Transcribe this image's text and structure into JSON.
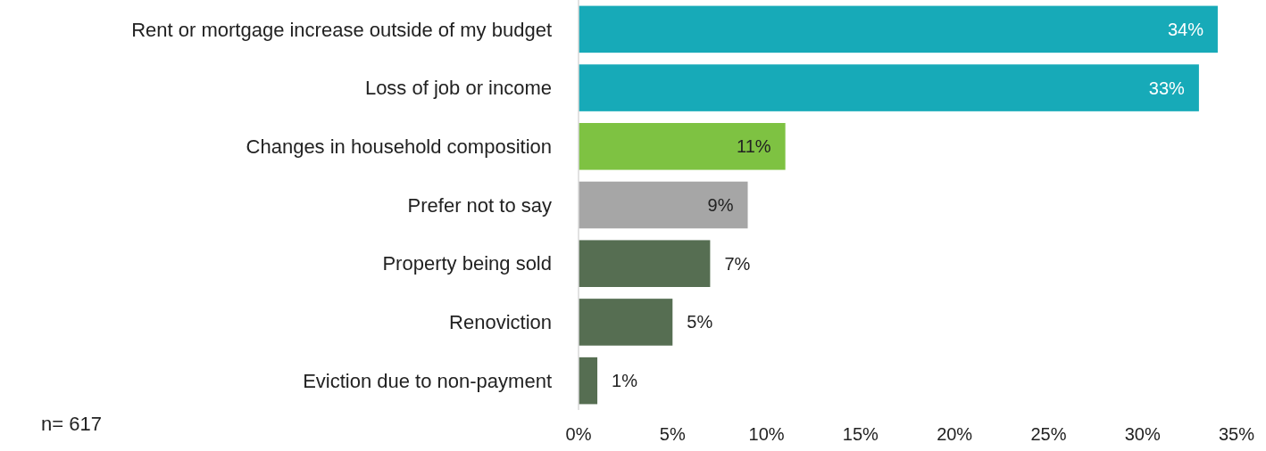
{
  "chart_data": {
    "type": "bar",
    "orientation": "horizontal",
    "categories": [
      "Rent or mortgage increase outside of my budget",
      "Loss of job or income",
      "Changes in household composition",
      "Prefer not to say",
      "Property being sold",
      "Renoviction",
      "Eviction due to non-payment"
    ],
    "values": [
      34,
      33,
      11,
      9,
      7,
      5,
      1
    ],
    "colors": [
      "#17aab8",
      "#17aab8",
      "#7ec242",
      "#a6a6a6",
      "#566e52",
      "#566e52",
      "#566e52"
    ],
    "value_labels": [
      "34%",
      "33%",
      "11%",
      "9%",
      "7%",
      "5%",
      "1%"
    ],
    "xlim": [
      0,
      35
    ],
    "xticks": [
      {
        "value": 0,
        "label": "0%"
      },
      {
        "value": 5,
        "label": "5%"
      },
      {
        "value": 10,
        "label": "10%"
      },
      {
        "value": 15,
        "label": "15%"
      },
      {
        "value": 20,
        "label": "20%"
      },
      {
        "value": 25,
        "label": "25%"
      },
      {
        "value": 30,
        "label": "30%"
      },
      {
        "value": 35,
        "label": "35%"
      }
    ],
    "grid": false,
    "annotations": [
      "n= 617"
    ]
  }
}
